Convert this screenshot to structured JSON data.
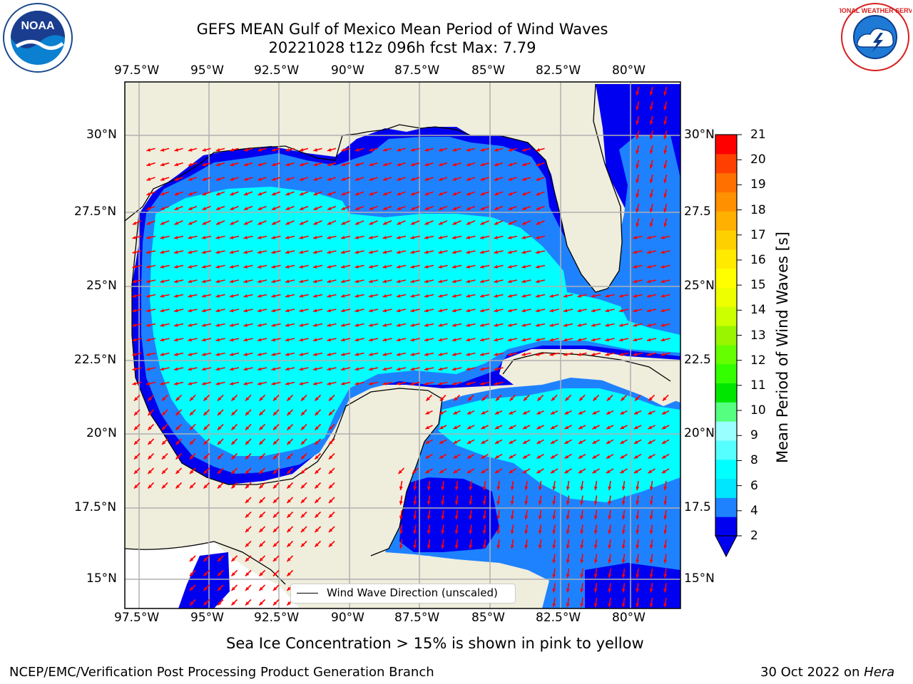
{
  "header": {
    "title_line1": "GEFS MEAN Gulf of Mexico Mean Period of Wind Waves",
    "title_line2": "20221028 t12z 096h fcst   Max: 7.79",
    "logo_left_text": "NOAA",
    "logo_right_text": "NATIONAL WEATHER SERVICE"
  },
  "map": {
    "lon_labels": [
      "97.5°W",
      "95°W",
      "92.5°W",
      "90°W",
      "87.5°W",
      "85°W",
      "82.5°W",
      "80°W"
    ],
    "lat_labels": [
      "30°N",
      "27.5°N",
      "25°N",
      "22.5°N",
      "20°N",
      "17.5°N",
      "15°N"
    ],
    "lat_labels_right": [
      "30°N",
      "27.5",
      "25°N",
      "22.5",
      "20°N",
      "17.5",
      "15°N"
    ],
    "legend_label": "Wind Wave Direction (unscaled)",
    "colors": {
      "land": "#efeddc",
      "ocean_low": "#0000f0",
      "ocean_mid": "#1e82ff",
      "ocean_high": "#00ffff",
      "arrow": "#ff0000",
      "grid": "#b0b0b0"
    }
  },
  "colorbar": {
    "label": "Mean Period of Wind Waves [s]",
    "ticks": [
      "21",
      "20",
      "19",
      "18",
      "17",
      "16",
      "15",
      "14",
      "13",
      "12",
      "11",
      "10",
      "9",
      "8",
      "6",
      "4",
      "2"
    ],
    "colors": [
      "#0000f0",
      "#1e82ff",
      "#00e6ff",
      "#00ffff",
      "#55ffff",
      "#99ffff",
      "#55ff80",
      "#00e600",
      "#33ff00",
      "#66ff00",
      "#99f500",
      "#ccff00",
      "#eeff00",
      "#ffff00",
      "#ffea00",
      "#ffd000",
      "#ffb000",
      "#ff9000",
      "#ff7000",
      "#ff4000",
      "#ff0000"
    ]
  },
  "footer": {
    "sea_ice_note": "Sea Ice Concentration > 15% is shown in pink to yellow",
    "org": "NCEP/EMC/Verification Post Processing Product Generation Branch",
    "date": "30 Oct 2022 on",
    "host": "Hera"
  }
}
